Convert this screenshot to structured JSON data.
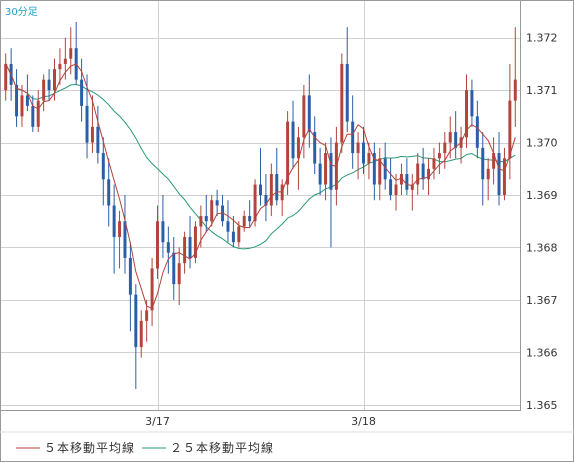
{
  "colors": {
    "background": "#ffffff",
    "grid": "#d0d0d0",
    "frame": "#999999",
    "up_candle": "#b3443c",
    "down_candle": "#2a5fa8",
    "ma5": "#b3443c",
    "ma25": "#2a9a76",
    "timeframe_text": "#22a0c8"
  },
  "chart_data": {
    "type": "candlestick",
    "timeframe_label": "30分足",
    "x_tick_labels": [
      {
        "index": 28,
        "label": "3/17"
      },
      {
        "index": 66,
        "label": "3/18"
      }
    ],
    "y_tick_labels": [
      "1.365",
      "1.366",
      "1.367",
      "1.368",
      "1.369",
      "1.370",
      "1.371",
      "1.372"
    ],
    "y_ticks": [
      1.365,
      1.366,
      1.367,
      1.368,
      1.369,
      1.37,
      1.371,
      1.372
    ],
    "ylim": [
      1.3649,
      1.3727
    ],
    "grid": true,
    "legend_position": "bottom-left",
    "legend": [
      {
        "label": "５本移動平均線",
        "color": "#b3443c"
      },
      {
        "label": "２５本移動平均線",
        "color": "#2a9a76"
      }
    ],
    "candles": [
      [
        1.371,
        1.3717,
        1.3708,
        1.3715
      ],
      [
        1.3715,
        1.3718,
        1.3708,
        1.3711
      ],
      [
        1.3711,
        1.3714,
        1.3703,
        1.3705
      ],
      [
        1.3705,
        1.3711,
        1.3703,
        1.3709
      ],
      [
        1.3709,
        1.3713,
        1.3706,
        1.3707
      ],
      [
        1.3707,
        1.3709,
        1.3702,
        1.3703
      ],
      [
        1.3703,
        1.371,
        1.3702,
        1.3708
      ],
      [
        1.3708,
        1.3713,
        1.3706,
        1.3712
      ],
      [
        1.3712,
        1.3714,
        1.3708,
        1.371
      ],
      [
        1.371,
        1.3716,
        1.3708,
        1.3714
      ],
      [
        1.3714,
        1.3718,
        1.3711,
        1.3715
      ],
      [
        1.3715,
        1.372,
        1.3712,
        1.3716
      ],
      [
        1.3716,
        1.3722,
        1.3713,
        1.3718
      ],
      [
        1.3718,
        1.3723,
        1.3711,
        1.3712
      ],
      [
        1.3712,
        1.3716,
        1.3704,
        1.3707
      ],
      [
        1.3707,
        1.3713,
        1.3697,
        1.37
      ],
      [
        1.37,
        1.3709,
        1.3698,
        1.3703
      ],
      [
        1.3703,
        1.3707,
        1.3696,
        1.3698
      ],
      [
        1.3698,
        1.3701,
        1.3688,
        1.3693
      ],
      [
        1.3693,
        1.3697,
        1.3684,
        1.3688
      ],
      [
        1.3688,
        1.3692,
        1.3675,
        1.3682
      ],
      [
        1.3682,
        1.3687,
        1.3676,
        1.3685
      ],
      [
        1.3685,
        1.369,
        1.3675,
        1.3678
      ],
      [
        1.3678,
        1.3681,
        1.3664,
        1.3671
      ],
      [
        1.3671,
        1.3673,
        1.3653,
        1.3661
      ],
      [
        1.3661,
        1.3668,
        1.3659,
        1.3666
      ],
      [
        1.3666,
        1.367,
        1.3662,
        1.3668
      ],
      [
        1.3668,
        1.3678,
        1.3665,
        1.3676
      ],
      [
        1.3676,
        1.3688,
        1.3674,
        1.3685
      ],
      [
        1.3685,
        1.369,
        1.3678,
        1.3681
      ],
      [
        1.3681,
        1.3684,
        1.3675,
        1.3679
      ],
      [
        1.3679,
        1.3682,
        1.367,
        1.3673
      ],
      [
        1.3673,
        1.368,
        1.3669,
        1.3677
      ],
      [
        1.3677,
        1.3683,
        1.3675,
        1.3682
      ],
      [
        1.3682,
        1.3686,
        1.3676,
        1.3678
      ],
      [
        1.3678,
        1.3685,
        1.3677,
        1.3684
      ],
      [
        1.3684,
        1.3688,
        1.368,
        1.3686
      ],
      [
        1.3686,
        1.369,
        1.3683,
        1.3685
      ],
      [
        1.3685,
        1.369,
        1.3684,
        1.3689
      ],
      [
        1.3689,
        1.3691,
        1.3686,
        1.3688
      ],
      [
        1.3688,
        1.369,
        1.3684,
        1.3685
      ],
      [
        1.3685,
        1.3689,
        1.3681,
        1.3683
      ],
      [
        1.3683,
        1.3686,
        1.368,
        1.3681
      ],
      [
        1.3681,
        1.3685,
        1.368,
        1.3684
      ],
      [
        1.3684,
        1.3687,
        1.3683,
        1.3686
      ],
      [
        1.3686,
        1.3689,
        1.3684,
        1.3685
      ],
      [
        1.3685,
        1.3693,
        1.3684,
        1.3692
      ],
      [
        1.3692,
        1.3699,
        1.3688,
        1.369
      ],
      [
        1.369,
        1.3694,
        1.3685,
        1.3688
      ],
      [
        1.3688,
        1.3696,
        1.3686,
        1.3694
      ],
      [
        1.3694,
        1.3699,
        1.3688,
        1.3689
      ],
      [
        1.3689,
        1.3693,
        1.3686,
        1.3692
      ],
      [
        1.3692,
        1.3706,
        1.369,
        1.3704
      ],
      [
        1.3704,
        1.3708,
        1.3695,
        1.3697
      ],
      [
        1.3697,
        1.3703,
        1.3691,
        1.3701
      ],
      [
        1.3701,
        1.3711,
        1.3697,
        1.3709
      ],
      [
        1.3709,
        1.3713,
        1.3699,
        1.3702
      ],
      [
        1.3702,
        1.3705,
        1.3694,
        1.3696
      ],
      [
        1.3696,
        1.3699,
        1.369,
        1.3692
      ],
      [
        1.3692,
        1.37,
        1.3689,
        1.3698
      ],
      [
        1.3698,
        1.3701,
        1.368,
        1.3691
      ],
      [
        1.3691,
        1.3703,
        1.3688,
        1.37
      ],
      [
        1.37,
        1.3717,
        1.3698,
        1.3715
      ],
      [
        1.3715,
        1.3722,
        1.3702,
        1.3704
      ],
      [
        1.3704,
        1.3709,
        1.3695,
        1.3698
      ],
      [
        1.3698,
        1.3702,
        1.3693,
        1.37
      ],
      [
        1.37,
        1.3703,
        1.3694,
        1.3696
      ],
      [
        1.3696,
        1.37,
        1.3693,
        1.3698
      ],
      [
        1.3698,
        1.37,
        1.3689,
        1.3692
      ],
      [
        1.3692,
        1.3699,
        1.3689,
        1.3697
      ],
      [
        1.3697,
        1.37,
        1.3691,
        1.3693
      ],
      [
        1.3693,
        1.3697,
        1.3689,
        1.369
      ],
      [
        1.369,
        1.3694,
        1.3687,
        1.3692
      ],
      [
        1.3692,
        1.3696,
        1.369,
        1.3694
      ],
      [
        1.3694,
        1.3697,
        1.369,
        1.3691
      ],
      [
        1.3691,
        1.3694,
        1.3687,
        1.3692
      ],
      [
        1.3692,
        1.3698,
        1.369,
        1.3696
      ],
      [
        1.3696,
        1.3699,
        1.3691,
        1.3693
      ],
      [
        1.3693,
        1.3697,
        1.369,
        1.3695
      ],
      [
        1.3695,
        1.3699,
        1.3693,
        1.3697
      ],
      [
        1.3697,
        1.37,
        1.3694,
        1.3698
      ],
      [
        1.3698,
        1.3702,
        1.3695,
        1.37
      ],
      [
        1.37,
        1.3705,
        1.3697,
        1.3702
      ],
      [
        1.3702,
        1.3706,
        1.3697,
        1.3699
      ],
      [
        1.3699,
        1.3703,
        1.3696,
        1.3701
      ],
      [
        1.3701,
        1.3713,
        1.3699,
        1.371
      ],
      [
        1.371,
        1.3712,
        1.3703,
        1.3705
      ],
      [
        1.3705,
        1.3708,
        1.3697,
        1.3699
      ],
      [
        1.3699,
        1.3702,
        1.3688,
        1.3693
      ],
      [
        1.3693,
        1.3697,
        1.3689,
        1.3695
      ],
      [
        1.3695,
        1.3701,
        1.3692,
        1.3698
      ],
      [
        1.3698,
        1.3702,
        1.3688,
        1.369
      ],
      [
        1.369,
        1.3699,
        1.3689,
        1.3697
      ],
      [
        1.3697,
        1.3715,
        1.3693,
        1.3708
      ],
      [
        1.3708,
        1.3722,
        1.3703,
        1.3712
      ]
    ]
  }
}
